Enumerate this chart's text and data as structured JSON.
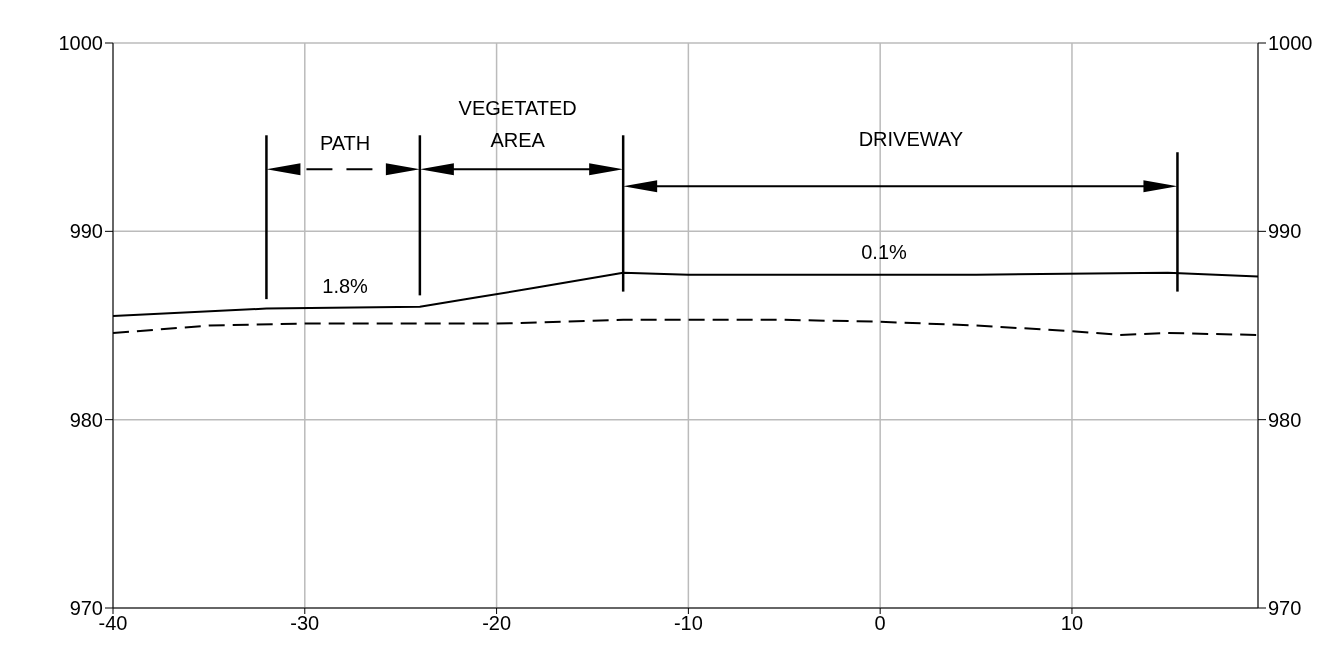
{
  "chart_data": {
    "type": "line",
    "series": [
      {
        "color": "#000000",
        "line_style": "solid",
        "x": [
          -40,
          -32,
          -24,
          -21,
          -18,
          -13.4,
          -10,
          0,
          5,
          15,
          19.7
        ],
        "values": [
          985.5,
          985.9,
          986.0,
          986.5,
          987.0,
          987.8,
          987.7,
          987.7,
          987.7,
          987.8,
          987.6
        ]
      },
      {
        "color": "#000000",
        "line_style": "dashed",
        "x": [
          -40,
          -35,
          -30,
          -20,
          -13.4,
          -10,
          -5,
          0,
          5,
          10,
          12.5,
          15,
          19.7
        ],
        "values": [
          984.6,
          985.0,
          985.1,
          985.1,
          985.3,
          985.3,
          985.3,
          985.2,
          985.0,
          984.7,
          984.5,
          984.6,
          984.5
        ]
      }
    ],
    "xlim": [
      -40,
      19.7
    ],
    "xticks": [
      -40,
      -30,
      -20,
      -10,
      0,
      10
    ],
    "ylim": [
      970,
      1000
    ],
    "yticks": [
      970,
      980,
      990,
      1000
    ],
    "y2lim": [
      970,
      1000
    ],
    "y2ticks": [
      970,
      980,
      990,
      1000
    ],
    "grid": true,
    "marker": "none",
    "annotations": [
      "PATH",
      "VEGETATED AREA",
      "DRIVEWAY",
      "1.8%",
      "0.1%"
    ]
  }
}
